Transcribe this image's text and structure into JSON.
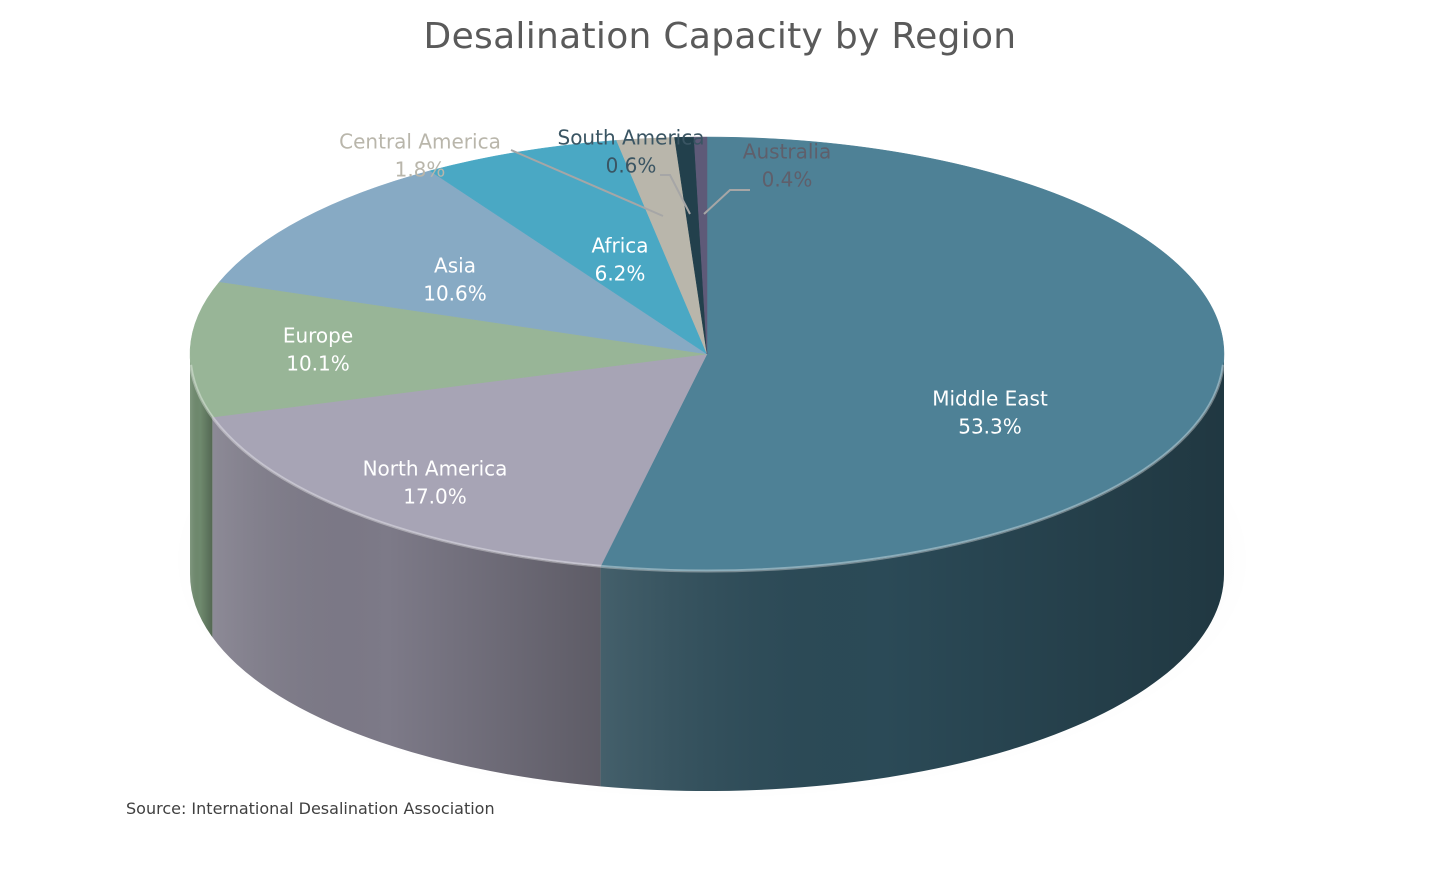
{
  "chart_data": {
    "type": "pie",
    "title": "Desalination Capacity by Region",
    "source": "Source: International Desalination Association",
    "slices": [
      {
        "name": "Middle East",
        "value": 53.3,
        "label": "53.3%",
        "color": "#4e8196",
        "side_color": "#2b4a57",
        "label_color": "#ffffff",
        "callout": false
      },
      {
        "name": "North America",
        "value": 17.0,
        "label": "17.0%",
        "color": "#a7a4b5",
        "side_color": "#7d7a88",
        "label_color": "#ffffff",
        "callout": false
      },
      {
        "name": "Europe",
        "value": 10.1,
        "label": "10.1%",
        "color": "#98b597",
        "side_color": "#6f8a6e",
        "label_color": "#ffffff",
        "callout": false
      },
      {
        "name": "Asia",
        "value": 10.6,
        "label": "10.6%",
        "color": "#87aac4",
        "side_color": "#5e7f97",
        "label_color": "#ffffff",
        "callout": false
      },
      {
        "name": "Africa",
        "value": 6.2,
        "label": "6.2%",
        "color": "#4aa8c4",
        "side_color": "#2f7a90",
        "label_color": "#ffffff",
        "callout": false
      },
      {
        "name": "Central America",
        "value": 1.8,
        "label": "1.8%",
        "color": "#b9b6ab",
        "side_color": "#8c8a81",
        "label_color": "#b9b6ab",
        "callout": true
      },
      {
        "name": "South America",
        "value": 0.6,
        "label": "0.6%",
        "color": "#22404c",
        "side_color": "#15282f",
        "label_color": "#3a5563",
        "callout": true
      },
      {
        "name": "Australia",
        "value": 0.4,
        "label": "0.4%",
        "color": "#5e5a78",
        "side_color": "#3e3b50",
        "label_color": "#5f5f6b",
        "callout": true
      }
    ]
  }
}
